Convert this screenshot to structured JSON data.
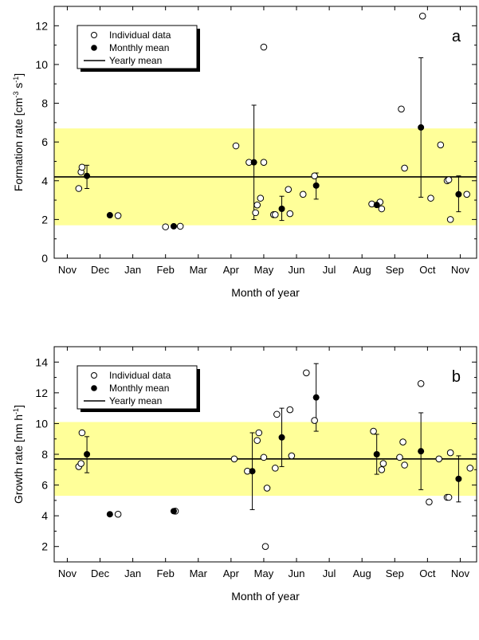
{
  "colors": {
    "band": "#ffff99",
    "axis": "#000000",
    "open_marker_fill": "#ffffff",
    "filled_marker": "#000000"
  },
  "chart_data": [
    {
      "type": "scatter",
      "panel_label": "a",
      "xlabel": "Month of year",
      "ylabel_main": "Formation rate",
      "ylabel_units": "[cm",
      "ylabel_sup1": "-3",
      "ylabel_mid": " s",
      "ylabel_sup2": "-1",
      "ylabel_end": "]",
      "x_ticklabels": [
        "Nov",
        "Dec",
        "Jan",
        "Feb",
        "Mar",
        "Apr",
        "May",
        "Jun",
        "Jul",
        "Aug",
        "Sep",
        "Oct",
        "Nov"
      ],
      "ylim": [
        0,
        13
      ],
      "y_ticks": [
        0,
        2,
        4,
        6,
        8,
        10,
        12
      ],
      "band": [
        1.7,
        6.7
      ],
      "yearly_mean": 4.2,
      "legend": {
        "position": "top-left",
        "individual": "Individual data",
        "monthly": "Monthly mean",
        "yearly": "Yearly mean"
      },
      "individual": [
        [
          0.35,
          3.6
        ],
        [
          0.42,
          4.45
        ],
        [
          0.45,
          4.7
        ],
        [
          1.55,
          2.2
        ],
        [
          3.0,
          1.62
        ],
        [
          3.45,
          1.65
        ],
        [
          5.15,
          5.8
        ],
        [
          5.55,
          4.95
        ],
        [
          5.75,
          2.35
        ],
        [
          5.8,
          2.75
        ],
        [
          5.9,
          3.1
        ],
        [
          6.0,
          10.9
        ],
        [
          6.0,
          4.95
        ],
        [
          6.3,
          2.25
        ],
        [
          6.35,
          2.25
        ],
        [
          6.75,
          3.55
        ],
        [
          6.8,
          2.3
        ],
        [
          7.2,
          3.3
        ],
        [
          7.55,
          4.25
        ],
        [
          9.3,
          2.8
        ],
        [
          9.55,
          2.9
        ],
        [
          9.6,
          2.55
        ],
        [
          10.2,
          7.7
        ],
        [
          10.3,
          4.65
        ],
        [
          10.85,
          12.5
        ],
        [
          11.1,
          3.1
        ],
        [
          11.4,
          5.85
        ],
        [
          11.6,
          4.0
        ],
        [
          11.65,
          4.05
        ],
        [
          11.7,
          2.0
        ],
        [
          12.2,
          3.3
        ]
      ],
      "monthly": [
        {
          "x": 0.6,
          "y": 4.25,
          "err": [
            3.6,
            4.8
          ]
        },
        {
          "x": 1.3,
          "y": 2.22,
          "err": null
        },
        {
          "x": 3.25,
          "y": 1.65,
          "err": null
        },
        {
          "x": 5.7,
          "y": 4.95,
          "err": [
            2.0,
            7.9
          ]
        },
        {
          "x": 6.55,
          "y": 2.55,
          "err": [
            1.95,
            3.2
          ]
        },
        {
          "x": 7.6,
          "y": 3.75,
          "err": [
            3.05,
            4.4
          ]
        },
        {
          "x": 9.45,
          "y": 2.75,
          "err": null
        },
        {
          "x": 10.8,
          "y": 6.75,
          "err": [
            3.15,
            10.35
          ]
        },
        {
          "x": 11.95,
          "y": 3.3,
          "err": [
            2.4,
            4.25
          ]
        }
      ]
    },
    {
      "type": "scatter",
      "panel_label": "b",
      "xlabel": "Month of year",
      "ylabel_main": "Growth rate",
      "ylabel_units": "[nm h",
      "ylabel_sup1": "-1",
      "ylabel_mid": "",
      "ylabel_sup2": "",
      "ylabel_end": "]",
      "x_ticklabels": [
        "Nov",
        "Dec",
        "Jan",
        "Feb",
        "Mar",
        "Apr",
        "May",
        "Jun",
        "Jul",
        "Aug",
        "Sep",
        "Oct",
        "Nov"
      ],
      "ylim": [
        1,
        15
      ],
      "y_ticks": [
        2,
        4,
        6,
        8,
        10,
        12,
        14
      ],
      "band": [
        5.3,
        10.1
      ],
      "yearly_mean": 7.7,
      "legend": {
        "position": "top-left",
        "individual": "Individual data",
        "monthly": "Monthly mean",
        "yearly": "Yearly mean"
      },
      "individual": [
        [
          0.35,
          7.2
        ],
        [
          0.42,
          7.4
        ],
        [
          0.45,
          9.4
        ],
        [
          1.55,
          4.1
        ],
        [
          3.3,
          4.3
        ],
        [
          5.1,
          7.7
        ],
        [
          5.5,
          6.9
        ],
        [
          5.8,
          8.9
        ],
        [
          5.85,
          9.4
        ],
        [
          6.0,
          7.8
        ],
        [
          6.05,
          2.0
        ],
        [
          6.1,
          5.8
        ],
        [
          6.35,
          7.1
        ],
        [
          6.4,
          10.6
        ],
        [
          6.8,
          10.9
        ],
        [
          6.85,
          7.9
        ],
        [
          7.3,
          13.3
        ],
        [
          7.55,
          10.2
        ],
        [
          9.35,
          9.5
        ],
        [
          9.65,
          7.4
        ],
        [
          9.6,
          7.0
        ],
        [
          10.15,
          7.8
        ],
        [
          10.25,
          8.8
        ],
        [
          10.3,
          7.3
        ],
        [
          10.8,
          12.6
        ],
        [
          11.05,
          4.9
        ],
        [
          11.35,
          7.7
        ],
        [
          11.6,
          5.2
        ],
        [
          11.65,
          5.2
        ],
        [
          11.7,
          8.1
        ],
        [
          12.3,
          7.1
        ]
      ],
      "monthly": [
        {
          "x": 0.6,
          "y": 8.0,
          "err": [
            6.8,
            9.15
          ]
        },
        {
          "x": 1.3,
          "y": 4.1,
          "err": null
        },
        {
          "x": 3.25,
          "y": 4.3,
          "err": null
        },
        {
          "x": 5.65,
          "y": 6.9,
          "err": [
            4.4,
            9.4
          ]
        },
        {
          "x": 6.55,
          "y": 9.1,
          "err": [
            7.2,
            11.0
          ]
        },
        {
          "x": 7.6,
          "y": 11.7,
          "err": [
            9.5,
            13.9
          ]
        },
        {
          "x": 9.45,
          "y": 8.0,
          "err": [
            6.7,
            9.3
          ]
        },
        {
          "x": 10.8,
          "y": 8.2,
          "err": [
            5.7,
            10.7
          ]
        },
        {
          "x": 11.95,
          "y": 6.4,
          "err": [
            4.9,
            7.9
          ]
        }
      ]
    }
  ]
}
